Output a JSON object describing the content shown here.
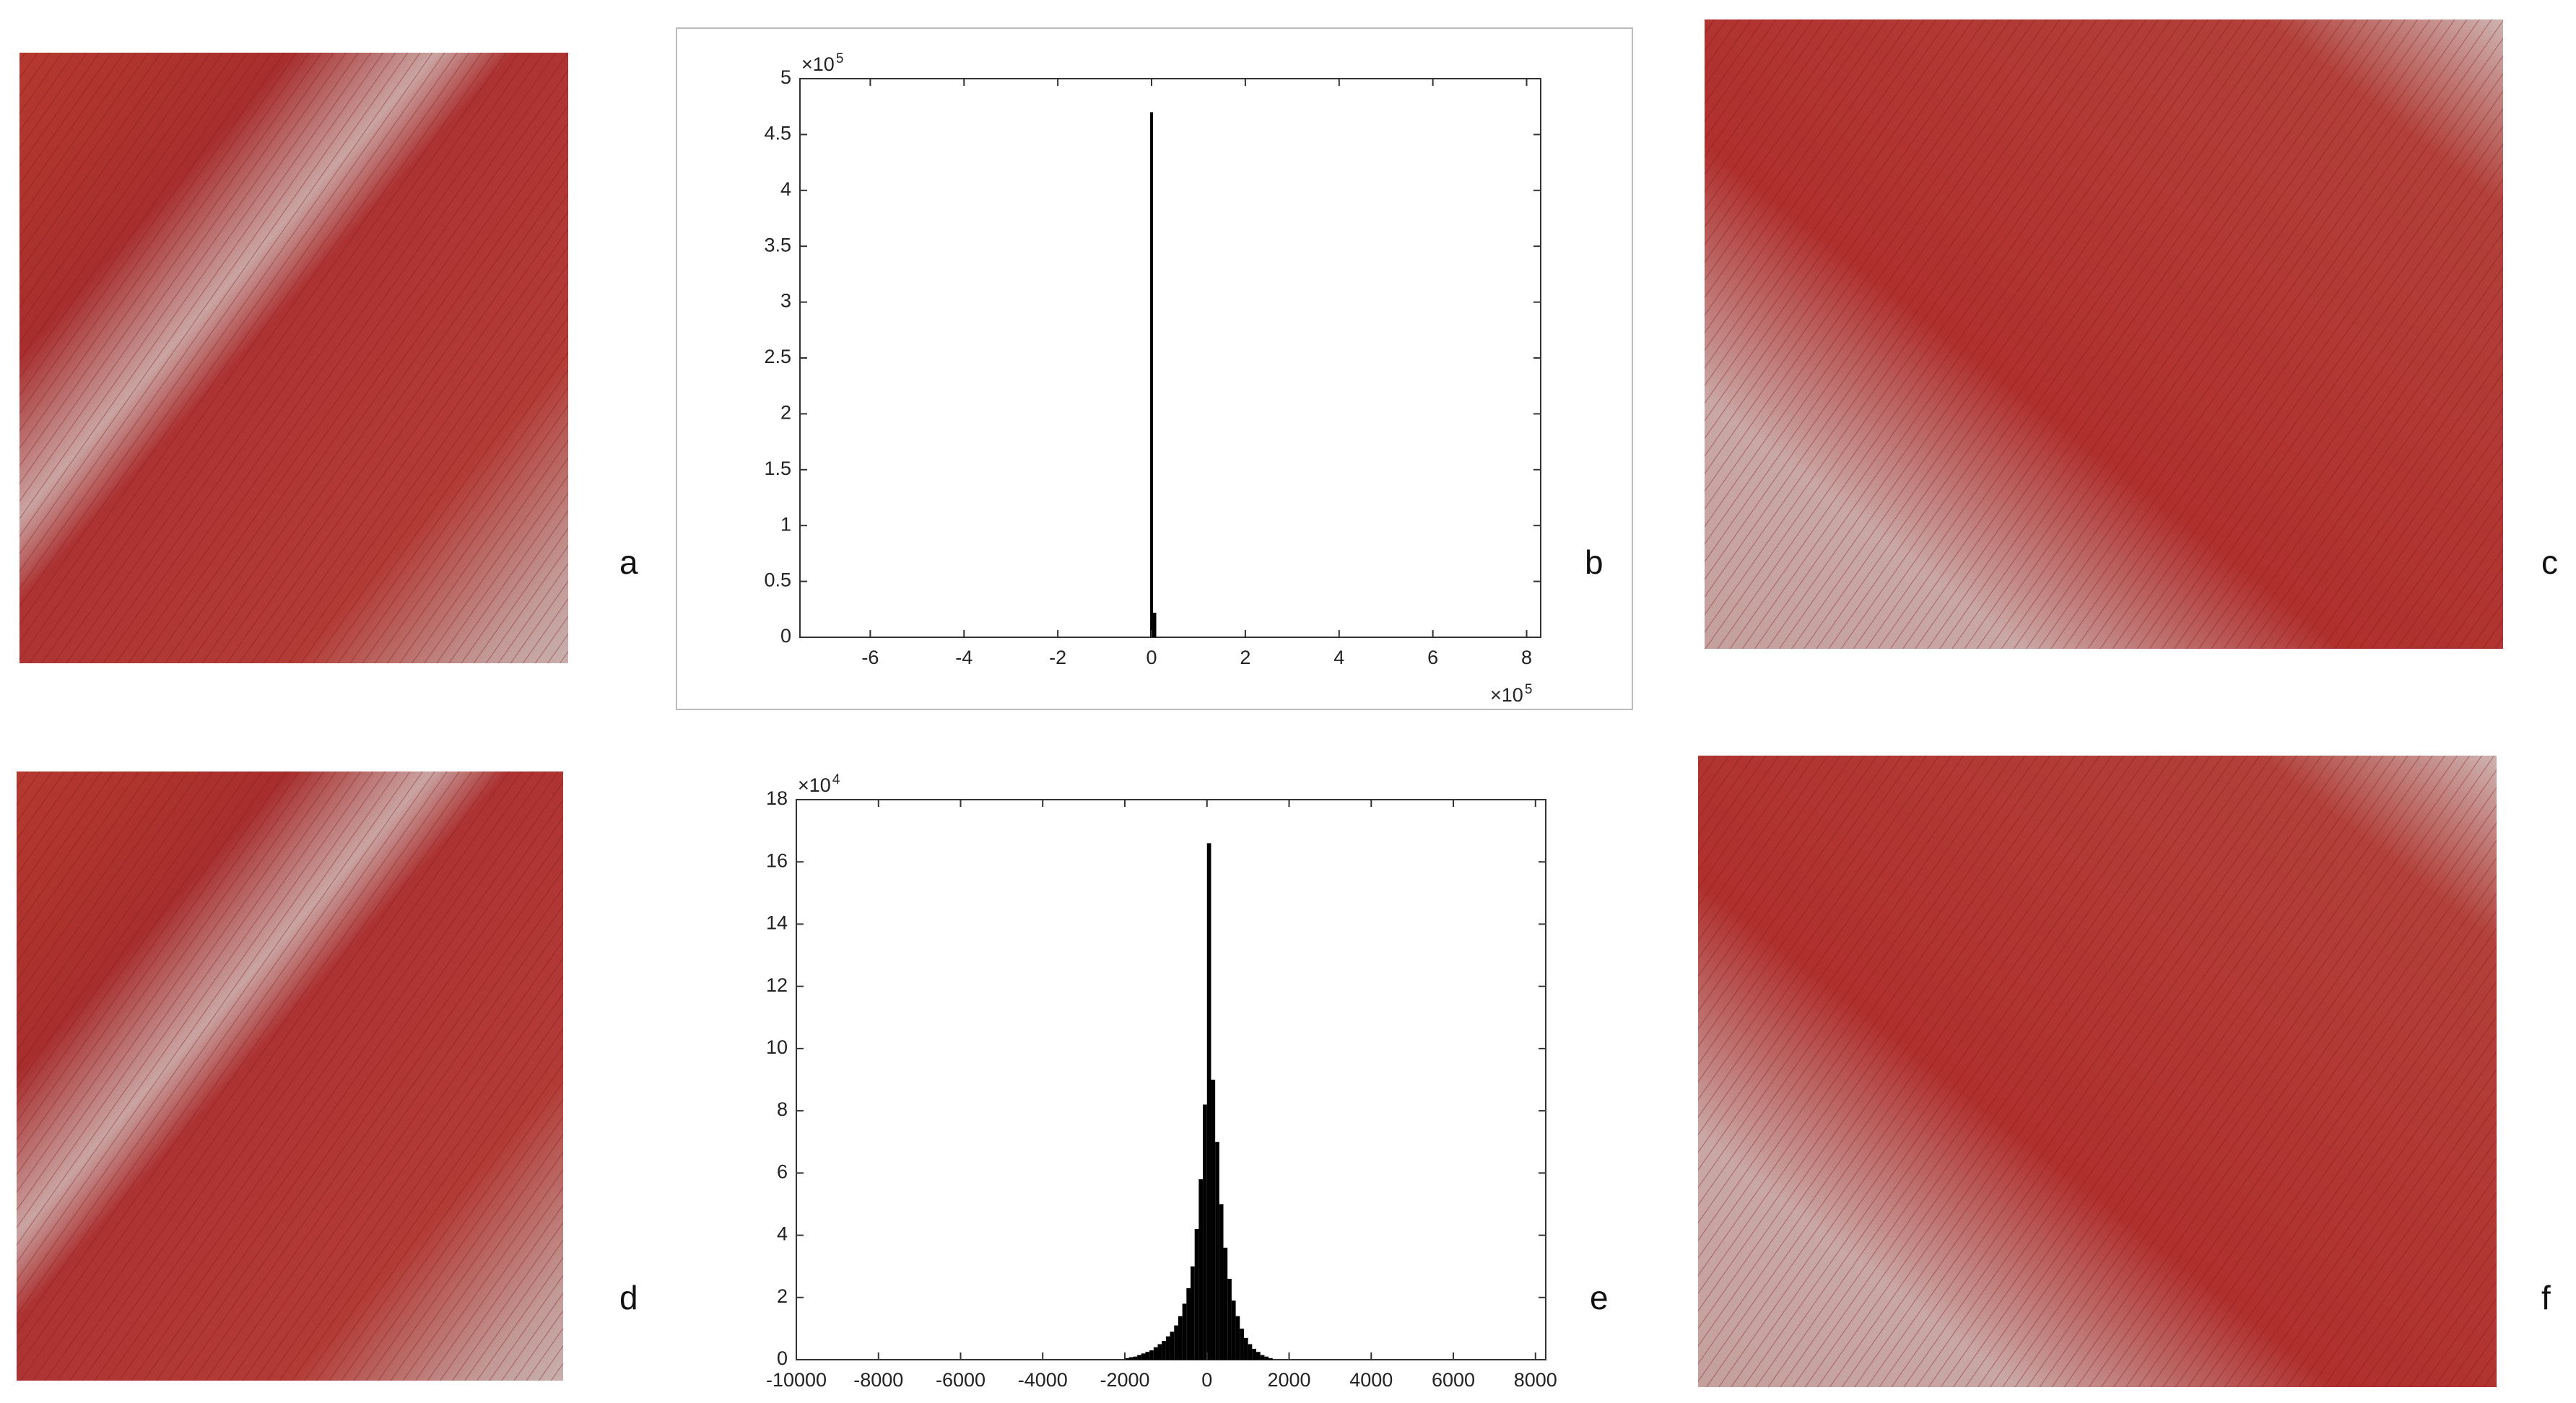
{
  "panel_labels": [
    "a",
    "b",
    "c",
    "d",
    "e",
    "f"
  ],
  "chart_data": [
    {
      "type": "histogram",
      "color": "#000000",
      "bins": [
        -0.03,
        0.03,
        0.1
      ],
      "counts": [
        4.7,
        0.22
      ],
      "xlim": [
        -7.5,
        8.3
      ],
      "ylim": [
        0,
        5
      ],
      "xticks": [
        -6,
        -4,
        -2,
        0,
        2,
        4,
        6,
        8
      ],
      "yticks": [
        0,
        0.5,
        1,
        1.5,
        2,
        2.5,
        3,
        3.5,
        4,
        4.5,
        5
      ],
      "x_multiplier": {
        "base": "×10",
        "exponent": "5"
      },
      "y_multiplier": {
        "base": "×10",
        "exponent": "5"
      }
    },
    {
      "type": "histogram",
      "color": "#000000",
      "bins": [
        -2000,
        -1900,
        -1800,
        -1700,
        -1600,
        -1500,
        -1400,
        -1300,
        -1200,
        -1100,
        -1000,
        -900,
        -800,
        -700,
        -600,
        -500,
        -400,
        -300,
        -200,
        -100,
        0,
        100,
        200,
        300,
        400,
        500,
        600,
        700,
        800,
        900,
        1000,
        1100,
        1200,
        1300,
        1400,
        1500,
        1600
      ],
      "counts": [
        0.05,
        0.08,
        0.1,
        0.15,
        0.2,
        0.25,
        0.3,
        0.4,
        0.5,
        0.6,
        0.75,
        0.9,
        1.1,
        1.4,
        1.8,
        2.3,
        3.0,
        4.2,
        5.8,
        8.2,
        16.6,
        9.0,
        7.0,
        5.0,
        3.6,
        2.6,
        1.9,
        1.4,
        1.0,
        0.7,
        0.5,
        0.35,
        0.25,
        0.15,
        0.1,
        0.05
      ],
      "xlim": [
        -10000,
        8250
      ],
      "ylim": [
        0,
        18
      ],
      "xticks": [
        -10000,
        -8000,
        -6000,
        -4000,
        -2000,
        0,
        2000,
        4000,
        6000,
        8000
      ],
      "yticks": [
        0,
        2,
        4,
        6,
        8,
        10,
        12,
        14,
        16,
        18
      ],
      "y_multiplier": {
        "base": "×10",
        "exponent": "4"
      }
    }
  ]
}
